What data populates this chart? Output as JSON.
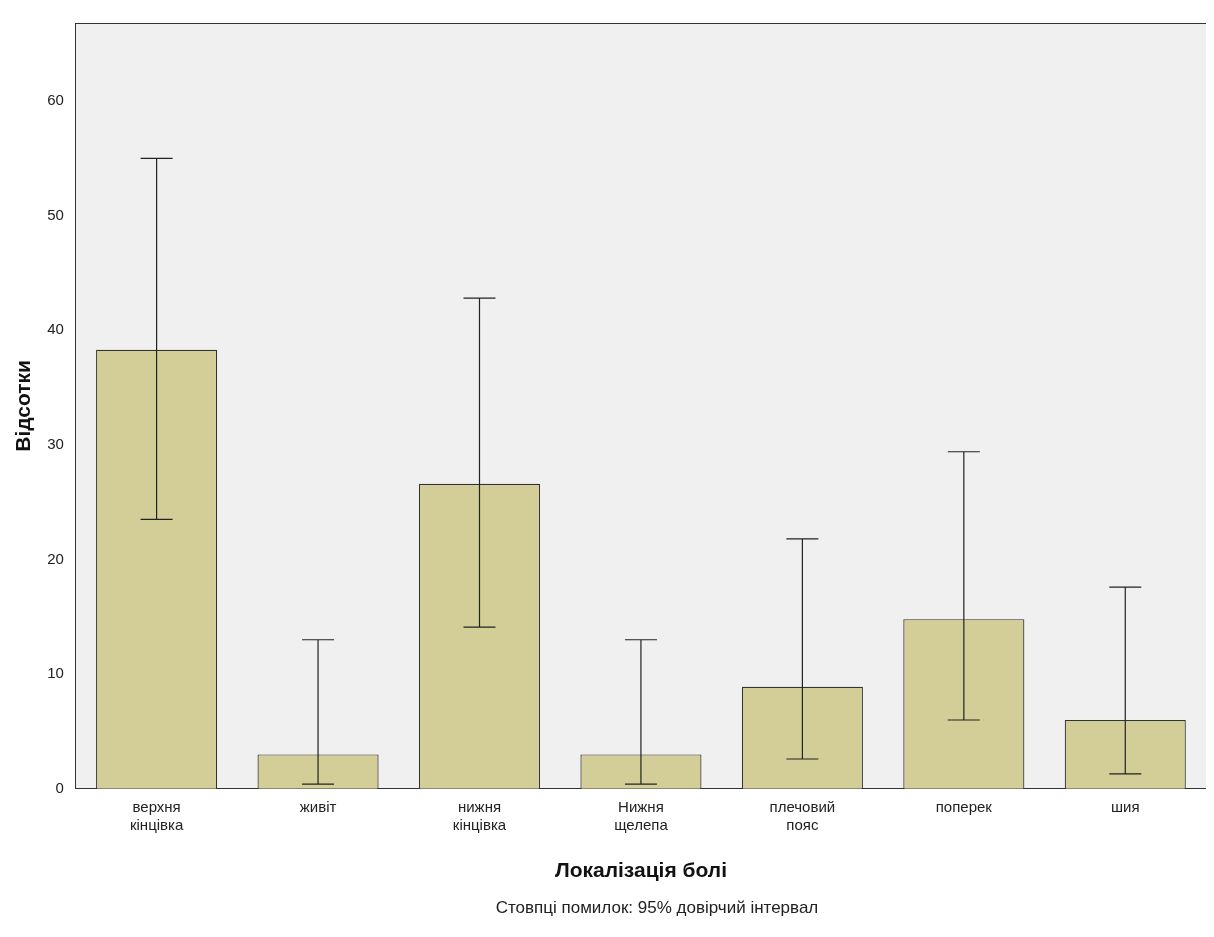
{
  "chart_data": {
    "type": "bar",
    "xlabel": "Локалізація болі",
    "ylabel": "Відсотки",
    "categories": [
      "верхня кінцівка",
      "живіт",
      "нижня кінцівка",
      "Нижня щелепа",
      "плечовий пояс",
      "поперек",
      "шия"
    ],
    "values": [
      38.3,
      3.0,
      26.6,
      3.0,
      8.9,
      14.8,
      6.0
    ],
    "errors": [
      [
        23.5,
        55.0
      ],
      [
        0.4,
        13.0
      ],
      [
        14.1,
        42.8
      ],
      [
        0.4,
        13.0
      ],
      [
        2.6,
        21.8
      ],
      [
        6.0,
        29.4
      ],
      [
        1.3,
        17.6
      ]
    ],
    "color": "#d3ce97",
    "ylim": [
      0,
      66.8
    ],
    "yticks": [
      0,
      10,
      20,
      30,
      40,
      50,
      60
    ],
    "grid": false,
    "legend": false,
    "annotations": [
      "Стовпці помилок: 95% довірчий інтервал"
    ]
  }
}
